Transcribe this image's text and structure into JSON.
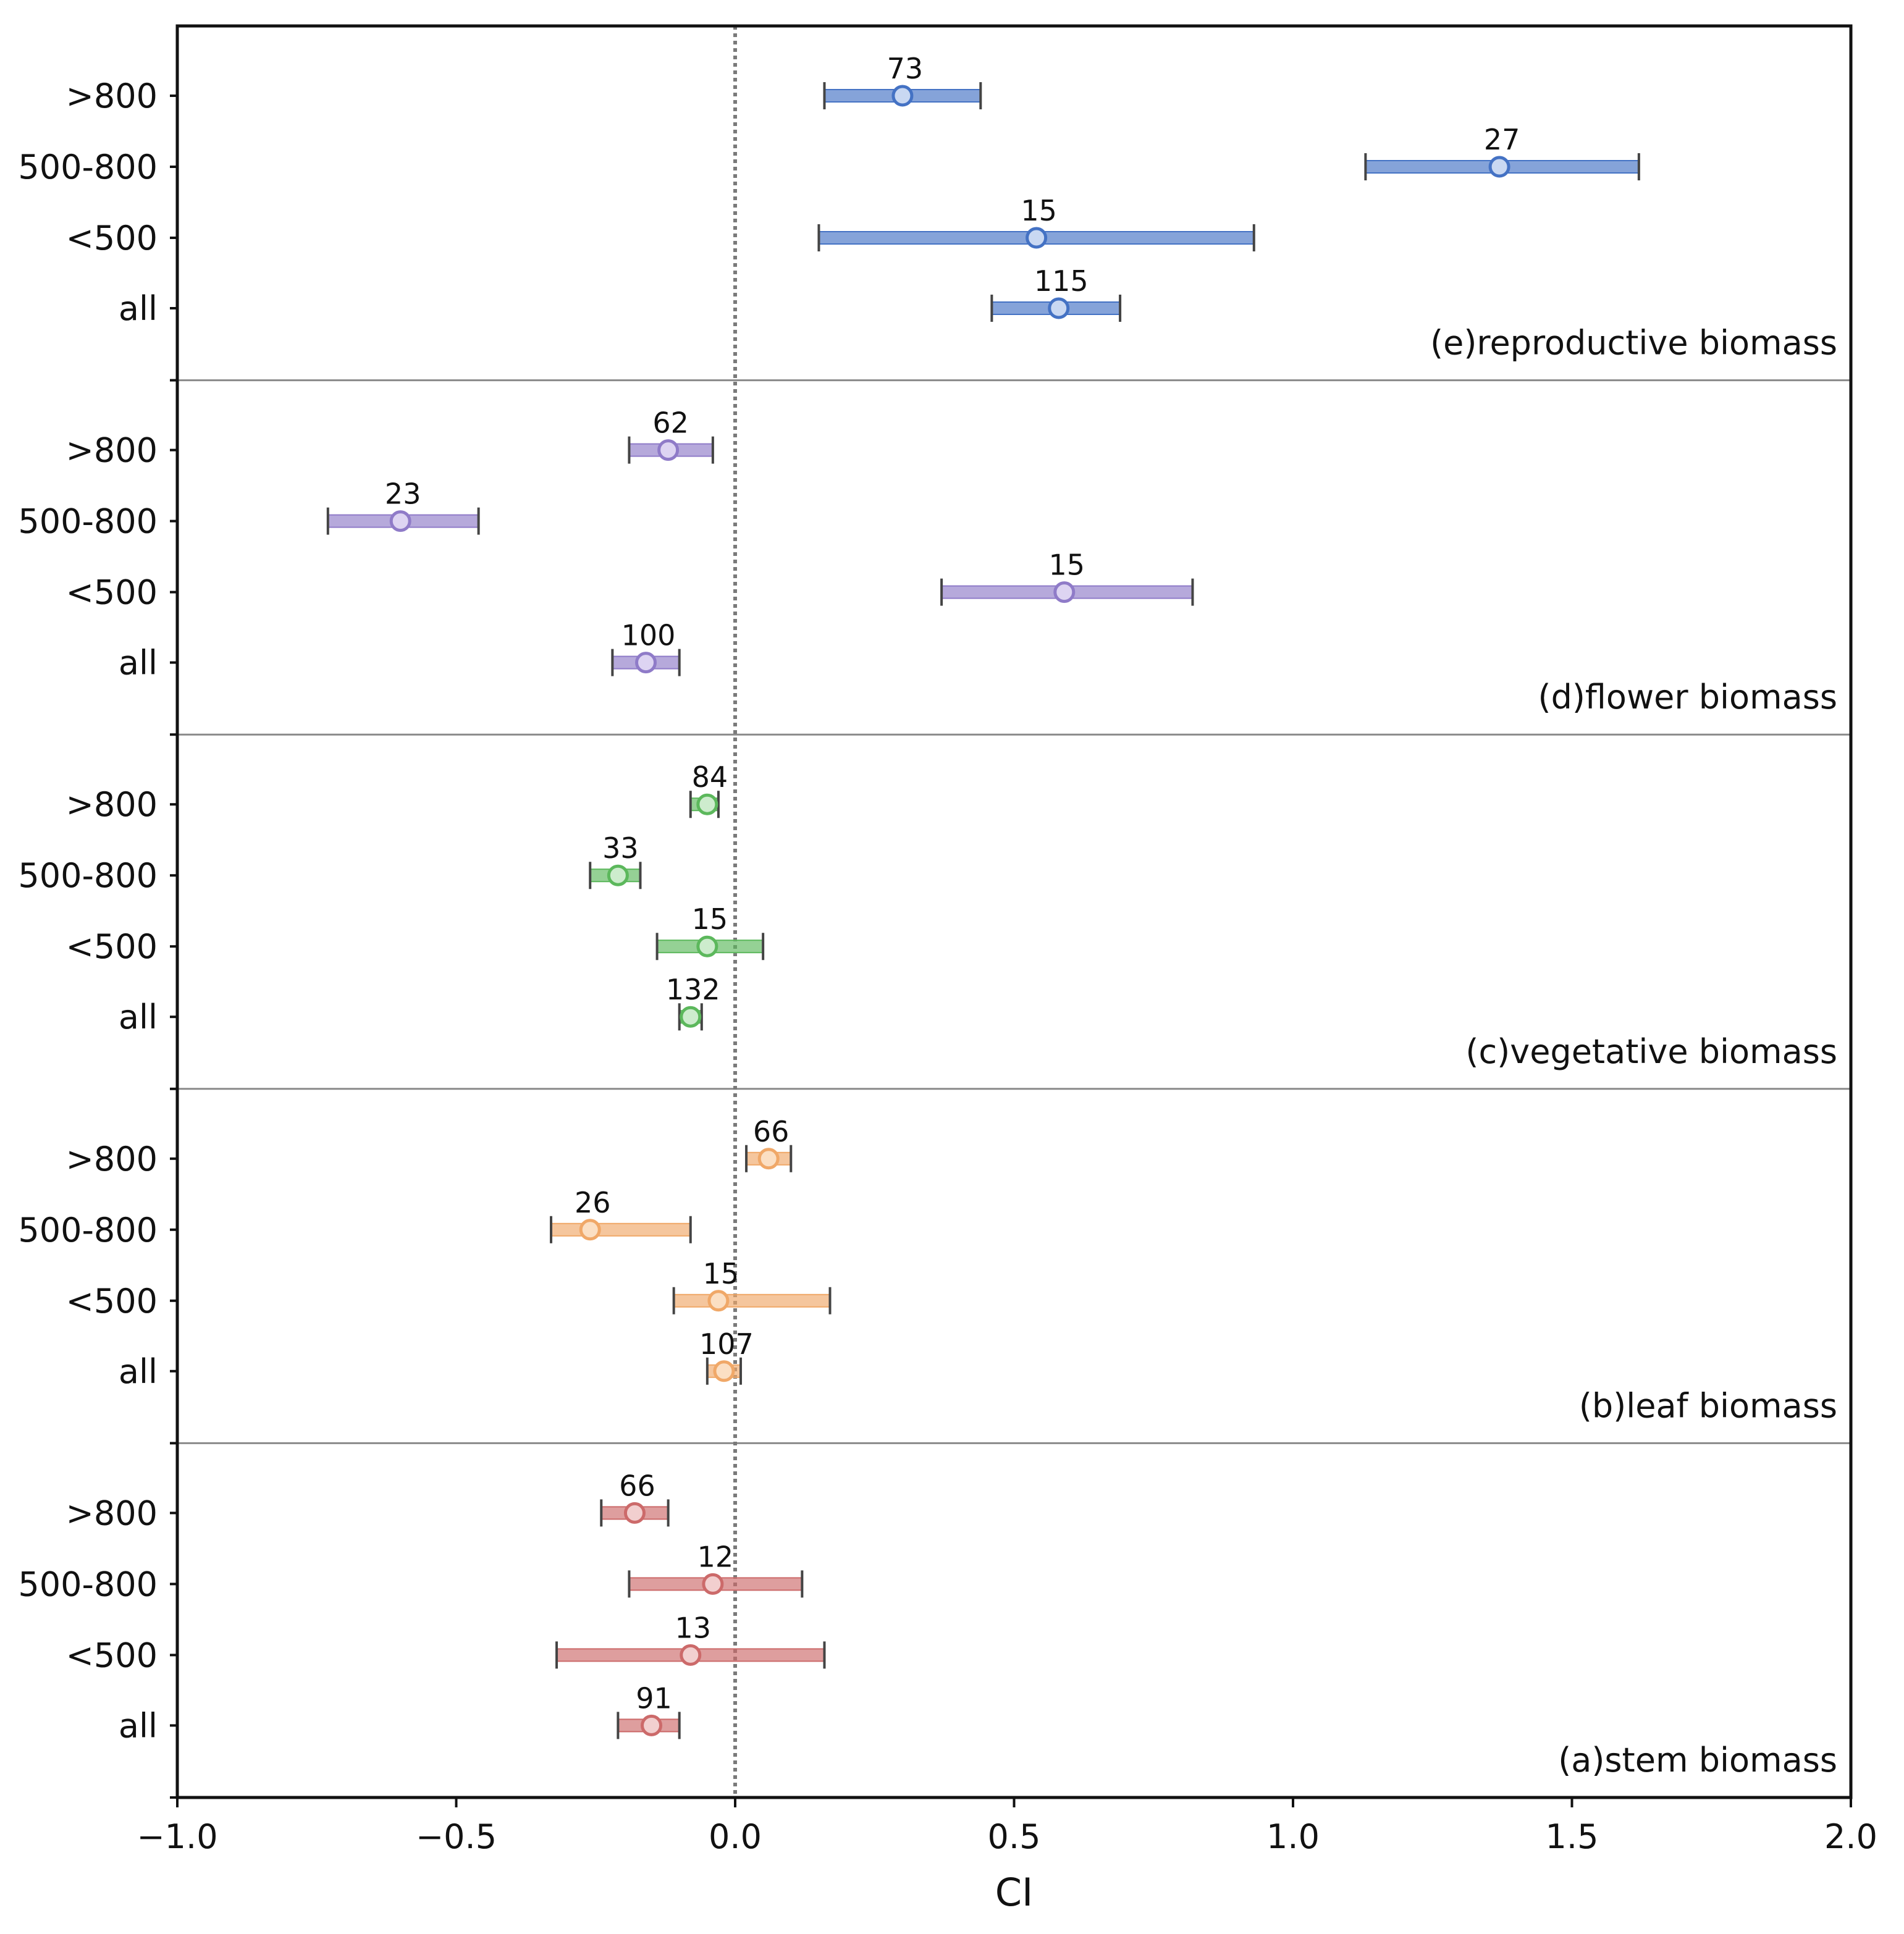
{
  "chart_data": {
    "type": "errorbar",
    "xlabel": "CI",
    "xlim": [
      -1.0,
      2.0
    ],
    "xticks": [
      "−1.0",
      "−0.5",
      "0.0",
      "0.5",
      "1.0",
      "1.5",
      "2.0"
    ],
    "xtick_values": [
      -1.0,
      -0.5,
      0.0,
      0.5,
      1.0,
      1.5,
      2.0
    ],
    "reference_line": 0.0,
    "categories": [
      ">800",
      "500-800",
      "<500",
      "all"
    ],
    "panels": [
      {
        "label": "(e)reproductive biomass",
        "color": "#4472c4",
        "fill": "#c9d8f2",
        "points": [
          {
            "category": ">800",
            "n": "73",
            "mean": 0.3,
            "lower": 0.16,
            "upper": 0.44
          },
          {
            "category": "500-800",
            "n": "27",
            "mean": 1.37,
            "lower": 1.13,
            "upper": 1.62
          },
          {
            "category": "<500",
            "n": "15",
            "mean": 0.54,
            "lower": 0.15,
            "upper": 0.93
          },
          {
            "category": "all",
            "n": "115",
            "mean": 0.58,
            "lower": 0.46,
            "upper": 0.69
          }
        ]
      },
      {
        "label": "(d)flower biomass",
        "color": "#8f7bc8",
        "fill": "#ddd4f2",
        "points": [
          {
            "category": ">800",
            "n": "62",
            "mean": -0.12,
            "lower": -0.19,
            "upper": -0.04
          },
          {
            "category": "500-800",
            "n": "23",
            "mean": -0.6,
            "lower": -0.73,
            "upper": -0.46
          },
          {
            "category": "<500",
            "n": "15",
            "mean": 0.59,
            "lower": 0.37,
            "upper": 0.82
          },
          {
            "category": "all",
            "n": "100",
            "mean": -0.16,
            "lower": -0.22,
            "upper": -0.1
          }
        ]
      },
      {
        "label": "(c)vegetative biomass",
        "color": "#5cb85c",
        "fill": "#cdeccd",
        "points": [
          {
            "category": ">800",
            "n": "84",
            "mean": -0.05,
            "lower": -0.08,
            "upper": -0.03
          },
          {
            "category": "500-800",
            "n": "33",
            "mean": -0.21,
            "lower": -0.26,
            "upper": -0.17
          },
          {
            "category": "<500",
            "n": "15",
            "mean": -0.05,
            "lower": -0.14,
            "upper": 0.05
          },
          {
            "category": "all",
            "n": "132",
            "mean": -0.08,
            "lower": -0.1,
            "upper": -0.06
          }
        ]
      },
      {
        "label": "(b)leaf biomass",
        "color": "#f0a868",
        "fill": "#fbdfc3",
        "points": [
          {
            "category": ">800",
            "n": "66",
            "mean": 0.06,
            "lower": 0.02,
            "upper": 0.1
          },
          {
            "category": "500-800",
            "n": "26",
            "mean": -0.26,
            "lower": -0.33,
            "upper": -0.08
          },
          {
            "category": "<500",
            "n": "15",
            "mean": -0.03,
            "lower": -0.11,
            "upper": 0.17
          },
          {
            "category": "all",
            "n": "107",
            "mean": -0.02,
            "lower": -0.05,
            "upper": 0.01
          }
        ]
      },
      {
        "label": "(a)stem biomass",
        "color": "#cc6a6a",
        "fill": "#f2cfcf",
        "points": [
          {
            "category": ">800",
            "n": "66",
            "mean": -0.18,
            "lower": -0.24,
            "upper": -0.12
          },
          {
            "category": "500-800",
            "n": "12",
            "mean": -0.04,
            "lower": -0.19,
            "upper": 0.12
          },
          {
            "category": "<500",
            "n": "13",
            "mean": -0.08,
            "lower": -0.32,
            "upper": 0.16
          },
          {
            "category": "all",
            "n": "91",
            "mean": -0.15,
            "lower": -0.21,
            "upper": -0.1
          }
        ]
      }
    ]
  }
}
